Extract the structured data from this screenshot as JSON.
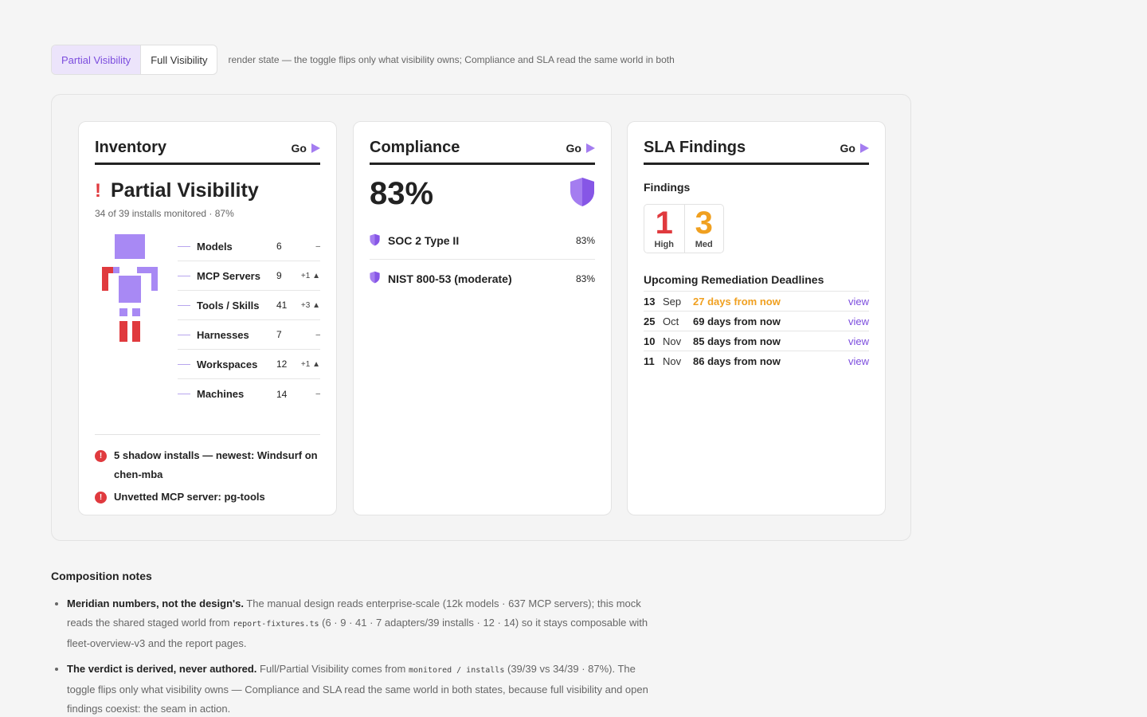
{
  "toggle": {
    "options": [
      "Partial Visibility",
      "Full Visibility"
    ],
    "active": "Partial Visibility",
    "note": "render state — the toggle flips only what visibility owns; Compliance and SLA read the same world in both"
  },
  "inventory": {
    "title": "Inventory",
    "go": "Go",
    "verdict": "Partial Visibility",
    "subtitle": "34 of 39 installs monitored · 87%",
    "rows": [
      {
        "name": "Models",
        "count": "6",
        "delta": "–"
      },
      {
        "name": "MCP Servers",
        "count": "9",
        "delta": "+1 ▲"
      },
      {
        "name": "Tools / Skills",
        "count": "41",
        "delta": "+3 ▲"
      },
      {
        "name": "Harnesses",
        "count": "7",
        "delta": "–"
      },
      {
        "name": "Workspaces",
        "count": "12",
        "delta": "+1 ▲"
      },
      {
        "name": "Machines",
        "count": "14",
        "delta": "–"
      }
    ],
    "alerts": [
      "5 shadow installs — newest: Windsurf on chen-mba",
      "Unvetted MCP server: pg-tools"
    ]
  },
  "compliance": {
    "title": "Compliance",
    "go": "Go",
    "score": "83%",
    "items": [
      {
        "name": "SOC 2 Type II",
        "pct": "83%"
      },
      {
        "name": "NIST 800-53 (moderate)",
        "pct": "83%"
      }
    ]
  },
  "sla": {
    "title": "SLA Findings",
    "go": "Go",
    "findings_label": "Findings",
    "high": "1",
    "high_label": "High",
    "med": "3",
    "med_label": "Med",
    "deadlines_title": "Upcoming Remediation Deadlines",
    "deadlines": [
      {
        "day": "13",
        "month": "Sep",
        "rel": "27 days from now",
        "soon": true,
        "link": "view"
      },
      {
        "day": "25",
        "month": "Oct",
        "rel": "69 days from now",
        "soon": false,
        "link": "view"
      },
      {
        "day": "10",
        "month": "Nov",
        "rel": "85 days from now",
        "soon": false,
        "link": "view"
      },
      {
        "day": "11",
        "month": "Nov",
        "rel": "86 days from now",
        "soon": false,
        "link": "view"
      }
    ]
  },
  "notes": {
    "title": "Composition notes",
    "items": [
      {
        "lead": "Meridian numbers, not the design's.",
        "pre": "The manual design reads enterprise-scale (12k models · 637 MCP servers); this mock reads the shared staged world from",
        "code": "report-fixtures.ts",
        "post": "(6 · 9 · 41 · 7 adapters/39 installs · 12 · 14) so it stays composable with fleet-overview-v3 and the report pages."
      },
      {
        "lead": "The verdict is derived, never authored.",
        "pre": "Full/Partial Visibility comes from",
        "code": "monitored / installs",
        "post": "(39/39 vs 34/39 · 87%). The toggle flips only what visibility owns — Compliance and SLA read the same world in both states, because full visibility and open findings coexist: the seam in action."
      }
    ]
  },
  "colors": {
    "accent": "#7c4dde",
    "accent_light": "#a47df0",
    "danger": "#e03a3e",
    "warning": "#f0a020"
  },
  "icons": [
    "go-arrow-icon",
    "exclamation-icon",
    "shield-icon",
    "alert-circle-icon",
    "robot-figure-icon"
  ]
}
